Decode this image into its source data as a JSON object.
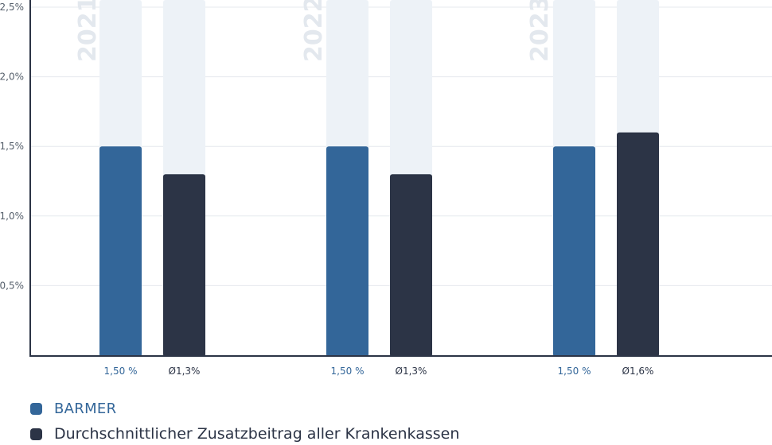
{
  "chart_data": {
    "type": "bar",
    "categories": [
      "2021",
      "2022",
      "2023"
    ],
    "series": [
      {
        "name": "BARMER",
        "values": [
          1.5,
          1.5,
          1.5
        ],
        "labels": [
          "1,50 %",
          "1,50 %",
          "1,50 %"
        ],
        "color": "#336699"
      },
      {
        "name": "Durchschnittlicher Zusatzbeitrag aller Krankenkassen",
        "values": [
          1.3,
          1.3,
          1.6
        ],
        "labels": [
          "Ø1,3%",
          "Ø1,3%",
          "Ø1,6%"
        ],
        "color": "#2c3446"
      }
    ],
    "ylim": [
      0,
      2.5
    ],
    "yticks": [
      {
        "value": 0.5,
        "label": "0,5%"
      },
      {
        "value": 1.0,
        "label": "1,0%"
      },
      {
        "value": 1.5,
        "label": "1,5%"
      },
      {
        "value": 2.0,
        "label": "2,0%"
      },
      {
        "value": 2.5,
        "label": "2,5%"
      }
    ],
    "xlabel": "",
    "ylabel": "",
    "grid": true,
    "legend_position": "bottom-left",
    "background_bar_color": "#edf2f7"
  }
}
